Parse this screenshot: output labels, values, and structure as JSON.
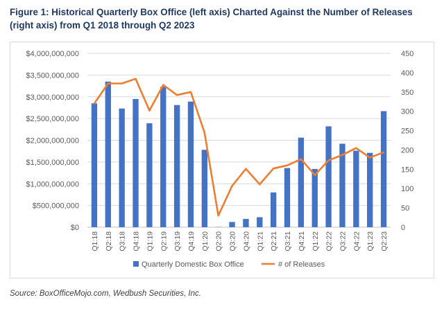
{
  "title": "Figure 1: Historical Quarterly Box Office (left axis) Charted Against the Number of Releases (right axis) from Q1 2018 through Q2 2023",
  "source": "Source: BoxOfficeMojo.com, Wedbush Securities, Inc.",
  "colors": {
    "bar": "#4472c4",
    "line": "#ed7d31",
    "grid": "#d9d9d9",
    "text": "#595959",
    "title": "#1f3864"
  },
  "chart_data": {
    "type": "bar",
    "categories": [
      "Q1:18",
      "Q2:18",
      "Q3:18",
      "Q4:18",
      "Q1:19",
      "Q2:19",
      "Q3:19",
      "Q4:19",
      "Q1:20",
      "Q2:20",
      "Q3:20",
      "Q4:20",
      "Q1:21",
      "Q2:21",
      "Q3:21",
      "Q4:21",
      "Q1:22",
      "Q2:22",
      "Q3:22",
      "Q4:22",
      "Q1:23",
      "Q2:23"
    ],
    "series": [
      {
        "name": "Quarterly Domestic Box Office",
        "type": "bar",
        "axis": "left",
        "values": [
          2850000000,
          3350000000,
          2730000000,
          2950000000,
          2390000000,
          3230000000,
          2810000000,
          2890000000,
          1780000000,
          5000000,
          120000000,
          190000000,
          230000000,
          800000000,
          1360000000,
          2060000000,
          1340000000,
          2320000000,
          1920000000,
          1760000000,
          1710000000,
          2670000000
        ]
      },
      {
        "name": "# of Releases",
        "type": "line",
        "axis": "right",
        "values": [
          320,
          372,
          372,
          384,
          302,
          368,
          342,
          350,
          245,
          30,
          107,
          151,
          111,
          152,
          160,
          176,
          135,
          173,
          187,
          205,
          180,
          194
        ]
      }
    ],
    "left_axis": {
      "min": 0,
      "max": 4000000000,
      "step": 500000000,
      "tick_labels": [
        "$0",
        "$500,000,000",
        "$1,000,000,000",
        "$1,500,000,000",
        "$2,000,000,000",
        "$2,500,000,000",
        "$3,000,000,000",
        "$3,500,000,000",
        "$4,000,000,000"
      ]
    },
    "right_axis": {
      "min": 0,
      "max": 450,
      "step": 50,
      "tick_labels": [
        "0",
        "50",
        "100",
        "150",
        "200",
        "250",
        "300",
        "350",
        "400",
        "450"
      ]
    },
    "grid": true,
    "legend": {
      "position": "bottom",
      "entries": [
        "Quarterly Domestic Box Office",
        "# of Releases"
      ]
    }
  }
}
